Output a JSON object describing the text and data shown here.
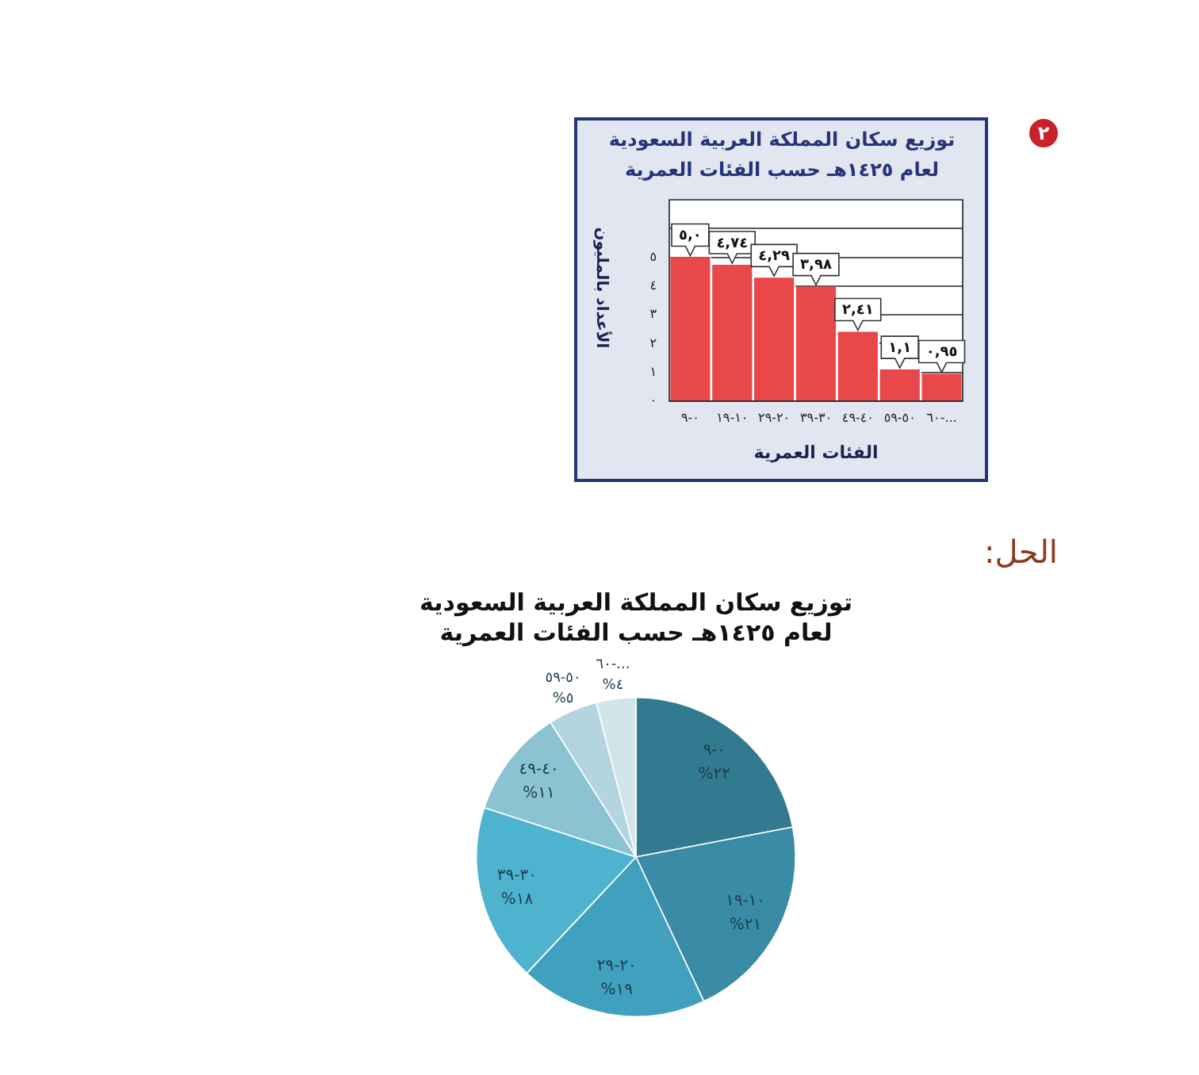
{
  "chart_data": [
    {
      "type": "bar",
      "title": "توزيع سكان المملكة العربية السعودية",
      "subtitle": "لعام ١٤٢٥هـ حسب الفئات العمرية",
      "xlabel": "الفئات العمرية",
      "ylabel": "الأعداد بالمليون",
      "annotations": [
        "٢"
      ],
      "categories": [
        "٠-٩",
        "١٠-١٩",
        "٢٠-٢٩",
        "٣٠-٣٩",
        "٤٠-٤٩",
        "٥٠-٥٩",
        "٦٠-..."
      ],
      "values": [
        5.0,
        4.74,
        4.29,
        3.98,
        2.41,
        1.1,
        0.95
      ],
      "value_labels": [
        "٥,٠",
        "٤,٧٤",
        "٤,٢٩",
        "٣,٩٨",
        "٢,٤١",
        "١,١",
        "٠,٩٥"
      ],
      "color": "#e9484b",
      "ylim": [
        0,
        7
      ],
      "yticks": [
        {
          "value": 0,
          "label": "٠"
        },
        {
          "value": 1,
          "label": "١"
        },
        {
          "value": 2,
          "label": "٢"
        },
        {
          "value": 3,
          "label": "٣"
        },
        {
          "value": 4,
          "label": "٤"
        },
        {
          "value": 5,
          "label": "٥"
        },
        {
          "value": 6,
          "label": null
        }
      ],
      "grid": "y"
    },
    {
      "type": "pie",
      "title": "توزيع سكان المملكة العربية السعودية",
      "subtitle": "لعام ١٤٢٥هـ حسب الفئات العمرية",
      "annotations": [
        "الحل:"
      ],
      "categories": [
        "٠-٩",
        "١٠-١٩",
        "٢٠-٢٩",
        "٣٠-٣٩",
        "٤٠-٤٩",
        "٥٠-٥٩",
        "...-٦٠"
      ],
      "values": [
        22,
        21,
        19,
        18,
        11,
        5,
        4
      ],
      "value_labels": [
        "٢٢%",
        "٢١%",
        "١٩%",
        "١٨%",
        "١١%",
        "٥%",
        "٤%"
      ],
      "colors": [
        "#327a90",
        "#3a8ba5",
        "#40a0bd",
        "#4eb3cf",
        "#8bc3d3",
        "#b3d5df",
        "#d2e5eb"
      ]
    }
  ]
}
